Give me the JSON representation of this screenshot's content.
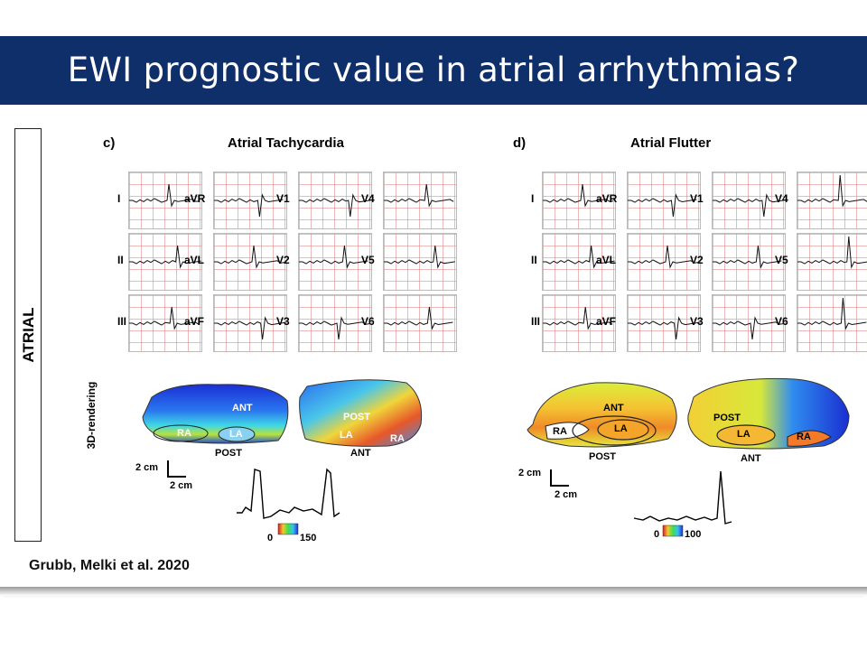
{
  "title": "EWI prognostic value in atrial arrhythmias?",
  "side_label": "ATRIAL",
  "rendering_label": "3D-rendering",
  "panels": {
    "c": {
      "letter": "c)",
      "title": "Atrial Tachycardia",
      "leads": [
        "I",
        "aVR",
        "V1",
        "V4",
        "II",
        "aVL",
        "V2",
        "V5",
        "III",
        "aVF",
        "V3",
        "V6"
      ],
      "map_labels": {
        "ant": "ANT",
        "post": "POST",
        "ra": "RA",
        "la": "LA",
        "post2": "POST",
        "la2": "LA",
        "ra2": "RA",
        "ant2": "ANT"
      },
      "scale_x": "2 cm",
      "scale_y": "2 cm",
      "colorbar_min": "0",
      "colorbar_max": "150"
    },
    "d": {
      "letter": "d)",
      "title": "Atrial Flutter",
      "leads": [
        "I",
        "aVR",
        "V1",
        "V4",
        "II",
        "aVL",
        "V2",
        "V5",
        "III",
        "aVF",
        "V3",
        "V6"
      ],
      "map_labels": {
        "ant": "ANT",
        "post": "POST",
        "ra": "RA",
        "la": "LA",
        "post2": "POST",
        "la2": "LA",
        "ra2": "RA",
        "ant2": "ANT"
      },
      "scale_x": "2 cm",
      "scale_y": "2 cm",
      "colorbar_min": "0",
      "colorbar_max": "100"
    }
  },
  "citation": "Grubb, Melki et al. 2020",
  "colors": {
    "title_bar": "#0f2f6b",
    "title_text": "#ffffff",
    "ecg_grid": "#dc8282"
  }
}
